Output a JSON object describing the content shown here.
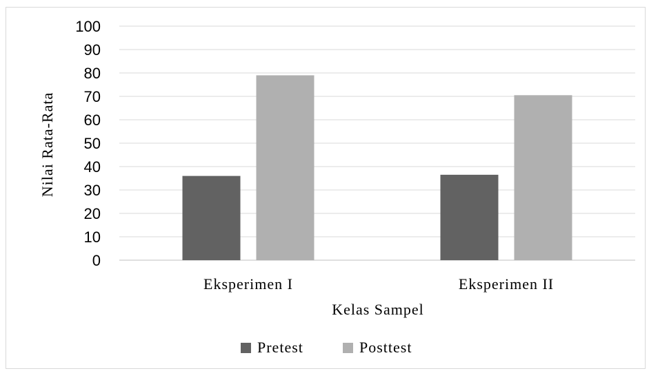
{
  "chart_data": {
    "type": "bar",
    "categories": [
      "Eksperimen I",
      "Eksperimen II"
    ],
    "series": [
      {
        "name": "Pretest",
        "values": [
          36,
          36.5
        ],
        "color": "#626262"
      },
      {
        "name": "Posttest",
        "values": [
          79,
          70.5
        ],
        "color": "#b0b0b0"
      }
    ],
    "xlabel": "Kelas Sampel",
    "ylabel": "Nilai Rata-Rata",
    "ylim": [
      0,
      100
    ],
    "yticks": [
      "0",
      "10",
      "20",
      "30",
      "40",
      "50",
      "60",
      "70",
      "80",
      "90",
      "100"
    ],
    "grid": true,
    "legend": "bottom-center"
  }
}
